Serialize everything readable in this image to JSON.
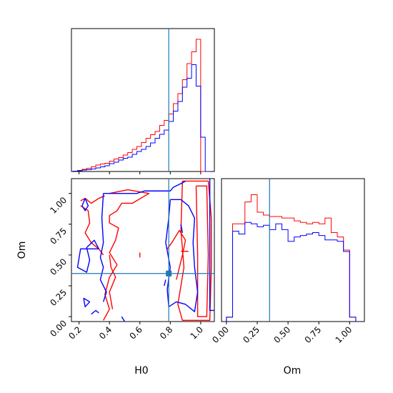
{
  "colors": {
    "red": "#ff0000",
    "blue": "#0000ff",
    "truth": "#1f77b4"
  },
  "chart_data": {
    "type": "corner",
    "parameters": [
      "H0",
      "Om"
    ],
    "truths": {
      "H0": 0.79,
      "Om": 0.35
    },
    "hist_H0": {
      "type": "histogram",
      "xlim": [
        0.15,
        1.09
      ],
      "bins": [
        0.16,
        0.19,
        0.22,
        0.25,
        0.28,
        0.31,
        0.34,
        0.37,
        0.4,
        0.43,
        0.46,
        0.49,
        0.52,
        0.55,
        0.58,
        0.61,
        0.64,
        0.67,
        0.7,
        0.73,
        0.76,
        0.79,
        0.82,
        0.85,
        0.88,
        0.91,
        0.94,
        0.97,
        1.0,
        1.03,
        1.06
      ],
      "series": [
        {
          "name": "",
          "color": "red",
          "values": [
            0.2,
            0.6,
            1.2,
            1.8,
            2.6,
            3.6,
            4.2,
            4.6,
            5.8,
            7.0,
            7.8,
            9.2,
            10.6,
            12.4,
            14.0,
            16.2,
            18.6,
            20.6,
            22.4,
            25.8,
            28.6,
            32.2,
            38.0,
            43.6,
            51.4,
            60.4,
            67.0,
            74.0,
            0,
            0
          ]
        },
        {
          "name": "",
          "color": "blue",
          "values": [
            0.2,
            0.4,
            0.8,
            1.0,
            1.4,
            2.0,
            2.6,
            3.2,
            4.4,
            5.2,
            6.4,
            7.4,
            8.0,
            9.6,
            11.2,
            12.4,
            14.0,
            16.0,
            18.6,
            20.8,
            23.2,
            28.0,
            33.8,
            39.2,
            47.2,
            52.2,
            59.8,
            47.8,
            19.2,
            0
          ]
        }
      ]
    },
    "hist_Om": {
      "type": "histogram",
      "xlim": [
        -0.04,
        1.12
      ],
      "xticks": [
        "0.00",
        "0.25",
        "0.50",
        "0.75",
        "1.00"
      ],
      "bins": [
        0.0,
        0.05,
        0.1,
        0.15,
        0.2,
        0.25,
        0.3,
        0.35,
        0.4,
        0.45,
        0.5,
        0.55,
        0.6,
        0.65,
        0.7,
        0.75,
        0.8,
        0.85,
        0.9,
        0.95,
        1.0,
        1.05
      ],
      "series": [
        {
          "name": "",
          "color": "red",
          "values": [
            3,
            67,
            67,
            82,
            87,
            75,
            73,
            72,
            72,
            71,
            71,
            69,
            68,
            67,
            68,
            67,
            71,
            61,
            58,
            49,
            3
          ]
        },
        {
          "name": "",
          "color": "blue",
          "values": [
            3,
            62,
            60,
            68,
            67,
            65,
            66,
            63,
            67,
            63,
            55,
            58,
            59,
            60,
            61,
            59,
            56,
            56,
            55,
            48,
            3
          ]
        }
      ]
    },
    "contour": {
      "type": "contour",
      "xlabel": "H0",
      "ylabel": "Om",
      "xlim": [
        0.15,
        1.09
      ],
      "ylim": [
        -0.04,
        1.12
      ],
      "xticks": [
        "0.2",
        "0.4",
        "0.6",
        "0.8",
        "1.0"
      ],
      "yticks": [
        "0.00",
        "0.25",
        "0.50",
        "0.75",
        "1.00"
      ],
      "series": [
        {
          "name": "",
          "color": "red",
          "lines": [
            [
              [
                0.88,
                1.1
              ],
              [
                1.05,
                1.1
              ],
              [
                1.07,
                0.8
              ],
              [
                1.07,
                0.4
              ],
              [
                1.06,
                -0.03
              ],
              [
                0.88,
                -0.03
              ],
              [
                0.85,
                0.1
              ],
              [
                0.89,
                0.4
              ],
              [
                0.87,
                0.7
              ],
              [
                0.88,
                1.1
              ]
            ],
            [
              [
                0.97,
                1.06
              ],
              [
                1.04,
                1.06
              ],
              [
                1.05,
                0.5
              ],
              [
                1.04,
                0.0
              ],
              [
                0.98,
                0.0
              ],
              [
                0.98,
                0.5
              ],
              [
                0.97,
                1.06
              ]
            ],
            [
              [
                0.4,
                1.0
              ],
              [
                0.52,
                1.03
              ],
              [
                0.66,
                1.0
              ],
              [
                0.55,
                0.92
              ],
              [
                0.48,
                0.92
              ],
              [
                0.45,
                0.86
              ],
              [
                0.4,
                0.82
              ],
              [
                0.4,
                0.76
              ],
              [
                0.46,
                0.72
              ],
              [
                0.44,
                0.62
              ],
              [
                0.4,
                0.52
              ],
              [
                0.45,
                0.42
              ],
              [
                0.4,
                0.32
              ],
              [
                0.37,
                0.18
              ],
              [
                0.4,
                0.06
              ],
              [
                0.36,
                -0.03
              ]
            ],
            [
              [
                0.42,
                0.06
              ],
              [
                0.4,
                0.2
              ],
              [
                0.44,
                0.32
              ],
              [
                0.41,
                0.4
              ],
              [
                0.4,
                0.5
              ]
            ],
            [
              [
                0.21,
                0.94
              ],
              [
                0.24,
                0.96
              ],
              [
                0.28,
                0.92
              ],
              [
                0.33,
                0.96
              ],
              [
                0.37,
                0.98
              ]
            ],
            [
              [
                0.21,
                0.9
              ],
              [
                0.26,
                0.86
              ],
              [
                0.27,
                0.76
              ],
              [
                0.24,
                0.68
              ],
              [
                0.28,
                0.6
              ],
              [
                0.33,
                0.55
              ],
              [
                0.36,
                0.5
              ]
            ],
            [
              [
                0.6,
                0.52
              ],
              [
                0.6,
                0.48
              ]
            ],
            [
              [
                0.78,
                0.55
              ],
              [
                0.81,
                0.6
              ],
              [
                0.86,
                0.7
              ],
              [
                0.9,
                0.62
              ],
              [
                0.88,
                0.5
              ],
              [
                0.86,
                0.4
              ],
              [
                0.84,
                0.3
              ]
            ],
            [
              [
                0.87,
                0.53
              ],
              [
                0.92,
                0.53
              ]
            ]
          ]
        },
        {
          "name": "",
          "color": "blue",
          "lines": [
            [
              [
                0.22,
                0.9
              ],
              [
                0.24,
                0.96
              ],
              [
                0.26,
                0.9
              ],
              [
                0.24,
                0.86
              ],
              [
                0.22,
                0.9
              ]
            ],
            [
              [
                0.33,
                0.55
              ],
              [
                0.3,
                0.62
              ],
              [
                0.25,
                0.56
              ],
              [
                0.27,
                0.46
              ],
              [
                0.25,
                0.36
              ],
              [
                0.19,
                0.4
              ],
              [
                0.21,
                0.55
              ],
              [
                0.33,
                0.55
              ]
            ],
            [
              [
                0.36,
                1.0
              ],
              [
                0.44,
                1.0
              ],
              [
                0.58,
                1.0
              ],
              [
                0.63,
                1.02
              ],
              [
                0.7,
                1.02
              ],
              [
                0.8,
                1.02
              ],
              [
                0.82,
                1.05
              ],
              [
                0.87,
                1.08
              ],
              [
                0.9,
                1.1
              ]
            ],
            [
              [
                0.36,
                1.0
              ],
              [
                0.35,
                0.8
              ],
              [
                0.36,
                0.6
              ],
              [
                0.34,
                0.48
              ],
              [
                0.36,
                0.4
              ],
              [
                0.34,
                0.3
              ],
              [
                0.38,
                0.2
              ],
              [
                0.36,
                0.12
              ]
            ],
            [
              [
                0.8,
                0.95
              ],
              [
                0.87,
                0.95
              ],
              [
                0.92,
                0.9
              ],
              [
                0.96,
                0.8
              ],
              [
                0.95,
                0.6
              ],
              [
                0.96,
                0.4
              ],
              [
                0.98,
                0.2
              ],
              [
                0.96,
                0.04
              ],
              [
                0.9,
                0.1
              ],
              [
                0.84,
                0.12
              ],
              [
                0.79,
                0.08
              ],
              [
                0.78,
                0.22
              ],
              [
                0.8,
                0.4
              ],
              [
                0.77,
                0.6
              ],
              [
                0.79,
                0.8
              ],
              [
                0.8,
                0.95
              ]
            ],
            [
              [
                0.23,
                0.15
              ],
              [
                0.27,
                0.12
              ],
              [
                0.24,
                0.08
              ],
              [
                0.23,
                0.15
              ]
            ],
            [
              [
                0.28,
                0.02
              ],
              [
                0.31,
                0.05
              ],
              [
                0.33,
                0.03
              ]
            ],
            [
              [
                0.48,
                0.0
              ],
              [
                0.5,
                -0.04
              ]
            ],
            [
              [
                0.76,
                0.25
              ],
              [
                0.77,
                0.3
              ]
            ],
            [
              [
                0.88,
                0.68
              ],
              [
                0.87,
                0.75
              ]
            ],
            [
              [
                1.06,
                1.12
              ],
              [
                1.06,
                0.6
              ],
              [
                1.06,
                0.05
              ],
              [
                1.09,
                0.05
              ]
            ]
          ]
        }
      ]
    }
  }
}
